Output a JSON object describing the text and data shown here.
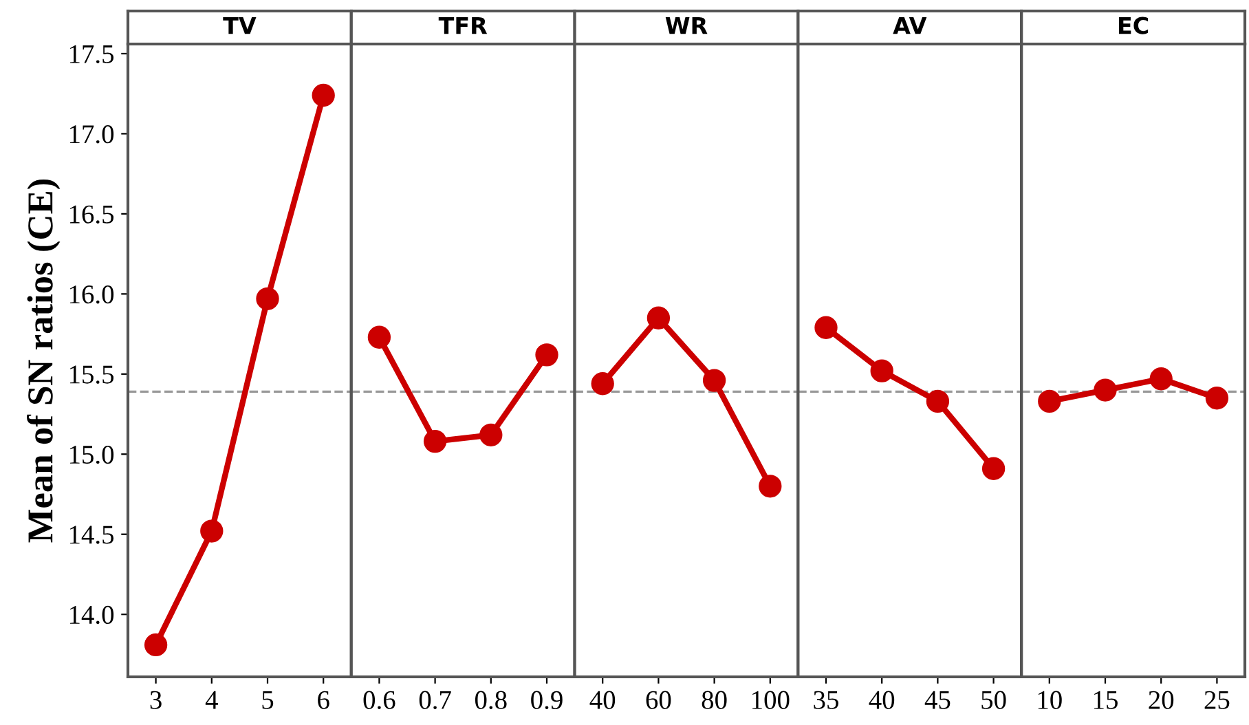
{
  "chart_data": [
    {
      "type": "line",
      "title": "TV",
      "ylabel": "Mean of SN ratios (CE)",
      "categories": [
        "3",
        "4",
        "5",
        "6"
      ],
      "values": [
        13.81,
        14.52,
        15.97,
        17.24
      ],
      "color": "#cc0000",
      "marker": "circle",
      "line_style": "solid",
      "ylim": [
        13.61,
        17.56
      ],
      "yticks": [
        {
          "value": 14,
          "label": "14.0"
        },
        14.5,
        {
          "value": 15,
          "label": "15.0"
        },
        15.5,
        {
          "value": 16,
          "label": "16.0"
        },
        16.5,
        {
          "value": 17,
          "label": "17.0"
        },
        17.5
      ],
      "ref_lines": [
        {
          "axis": "y",
          "value": 15.39,
          "color": "#999999",
          "line_style": "dashed"
        }
      ],
      "grid": false,
      "legend": false
    },
    {
      "type": "line",
      "title": "TFR",
      "categories": [
        "0.6",
        "0.7",
        "0.8",
        "0.9"
      ],
      "values": [
        15.73,
        15.08,
        15.12,
        15.62
      ],
      "color": "#cc0000",
      "marker": "circle",
      "line_style": "solid",
      "ylim": [
        13.61,
        17.56
      ],
      "ref_lines": [
        {
          "axis": "y",
          "value": 15.39,
          "color": "#999999",
          "line_style": "dashed"
        }
      ],
      "tick_labels": "x",
      "grid": false,
      "legend": false
    },
    {
      "type": "line",
      "title": "WR",
      "categories": [
        "40",
        "60",
        "80",
        "100"
      ],
      "values": [
        15.44,
        15.85,
        15.46,
        14.8
      ],
      "color": "#cc0000",
      "marker": "circle",
      "line_style": "solid",
      "ylim": [
        13.61,
        17.56
      ],
      "ref_lines": [
        {
          "axis": "y",
          "value": 15.39,
          "color": "#999999",
          "line_style": "dashed"
        }
      ],
      "tick_labels": "x",
      "grid": false,
      "legend": false
    },
    {
      "type": "line",
      "title": "AV",
      "categories": [
        "35",
        "40",
        "45",
        "50"
      ],
      "values": [
        15.79,
        15.52,
        15.33,
        14.91
      ],
      "color": "#cc0000",
      "marker": "circle",
      "line_style": "solid",
      "ylim": [
        13.61,
        17.56
      ],
      "ref_lines": [
        {
          "axis": "y",
          "value": 15.39,
          "color": "#999999",
          "line_style": "dashed"
        }
      ],
      "tick_labels": "x",
      "grid": false,
      "legend": false
    },
    {
      "type": "line",
      "title": "EC",
      "categories": [
        "10",
        "15",
        "20",
        "25"
      ],
      "values": [
        15.33,
        15.4,
        15.47,
        15.35
      ],
      "color": "#cc0000",
      "marker": "circle",
      "line_style": "solid",
      "ylim": [
        13.61,
        17.56
      ],
      "ref_lines": [
        {
          "axis": "y",
          "value": 15.39,
          "color": "#999999",
          "line_style": "dashed"
        }
      ],
      "tick_labels": "x",
      "grid": false,
      "legend": false
    }
  ]
}
